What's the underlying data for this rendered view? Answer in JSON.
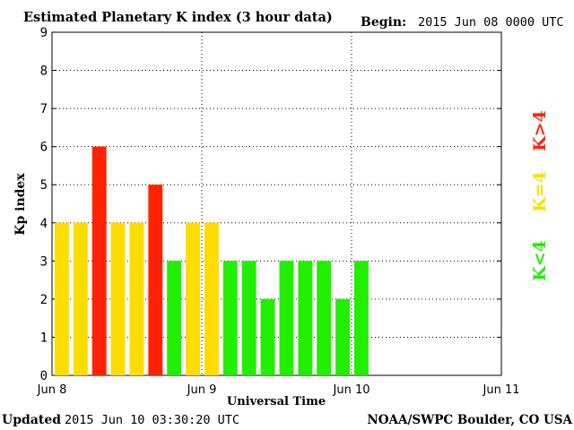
{
  "header": {
    "title": "Estimated Planetary K index (3 hour data)",
    "begin_label": "Begin:",
    "begin_value": "2015 Jun 08 0000 UTC"
  },
  "footer": {
    "updated_label": "Updated",
    "updated_value": "2015 Jun 10 03:30:20 UTC",
    "source": "NOAA/SWPC Boulder, CO USA"
  },
  "legend": {
    "high": "K>4",
    "equal": "K=4",
    "low": "K<4"
  },
  "colors": {
    "high": "#ff2200",
    "equal": "#ffdd00",
    "low": "#22ee00",
    "grid": "#000000",
    "background": "#ffffff"
  },
  "chart_data": {
    "type": "bar",
    "title": "Estimated Planetary K index (3 hour data)",
    "xlabel": "Universal Time",
    "ylabel": "Kp index",
    "ylim": [
      0,
      9
    ],
    "yticks": [
      0,
      1,
      2,
      3,
      4,
      5,
      6,
      7,
      8,
      9
    ],
    "xlim_hours": [
      0,
      72
    ],
    "xticks": [
      {
        "label": "Jun 8",
        "hour": 0
      },
      {
        "label": "Jun 9",
        "hour": 24
      },
      {
        "label": "Jun 10",
        "hour": 48
      },
      {
        "label": "Jun 11",
        "hour": 72
      }
    ],
    "bin_hours": 3,
    "values": [
      4,
      4,
      6,
      4,
      4,
      5,
      3,
      4,
      4,
      3,
      3,
      2,
      3,
      3,
      3,
      2,
      3
    ],
    "grid": true
  }
}
